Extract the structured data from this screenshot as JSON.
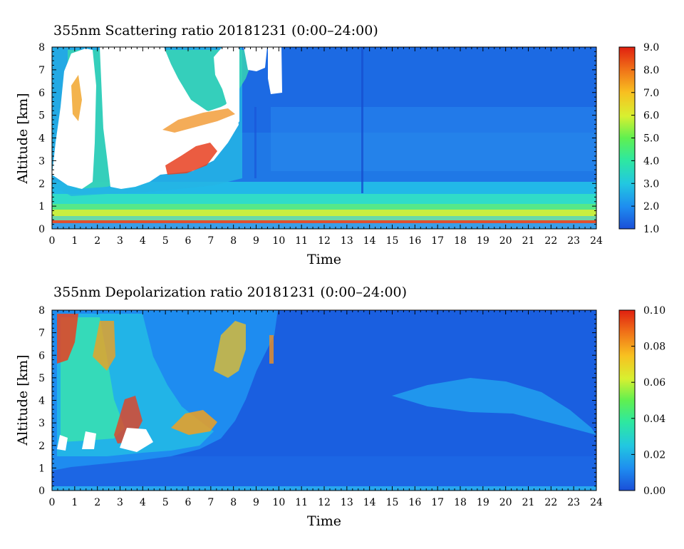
{
  "chart_data": [
    {
      "type": "heatmap",
      "title": "355nm Scattering ratio  20181231 (0:00–24:00)",
      "xlabel": "Time",
      "ylabel": "Altitude [km]",
      "xlim": [
        0,
        24
      ],
      "ylim": [
        0,
        8
      ],
      "x_ticks": [
        "0",
        "1",
        "2",
        "3",
        "4",
        "5",
        "6",
        "7",
        "8",
        "9",
        "10",
        "11",
        "12",
        "13",
        "14",
        "15",
        "16",
        "17",
        "18",
        "19",
        "20",
        "21",
        "22",
        "23",
        "24"
      ],
      "y_ticks": [
        "0",
        "1",
        "2",
        "3",
        "4",
        "5",
        "6",
        "7",
        "8"
      ],
      "colorbar": {
        "min": 1.0,
        "max": 9.0,
        "ticks": [
          "1.0",
          "2.0",
          "3.0",
          "4.0",
          "5.0",
          "6.0",
          "7.0",
          "8.0",
          "9.0"
        ]
      },
      "saturated_color": "#ffffff",
      "colormap": [
        "#1a4fd8",
        "#1e8cf0",
        "#22c8e0",
        "#2ee8a0",
        "#60f050",
        "#d8f030",
        "#f8c020",
        "#f07018",
        "#e02010"
      ]
    },
    {
      "type": "heatmap",
      "title": "355nm Depolarization ratio  20181231 (0:00–24:00)",
      "xlabel": "Time",
      "ylabel": "Altitude [km]",
      "xlim": [
        0,
        24
      ],
      "ylim": [
        0,
        8
      ],
      "x_ticks": [
        "0",
        "1",
        "2",
        "3",
        "4",
        "5",
        "6",
        "7",
        "8",
        "9",
        "10",
        "11",
        "12",
        "13",
        "14",
        "15",
        "16",
        "17",
        "18",
        "19",
        "20",
        "21",
        "22",
        "23",
        "24"
      ],
      "y_ticks": [
        "0",
        "1",
        "2",
        "3",
        "4",
        "5",
        "6",
        "7",
        "8"
      ],
      "colorbar": {
        "min": 0.0,
        "max": 0.1,
        "ticks": [
          "0.00",
          "0.02",
          "0.04",
          "0.06",
          "0.08",
          "0.10"
        ]
      },
      "saturated_color": "#ffffff",
      "colormap": [
        "#1a4fd8",
        "#1e8cf0",
        "#22c8e0",
        "#2ee8a0",
        "#60f050",
        "#d8f030",
        "#f8c020",
        "#f07018",
        "#e02010"
      ]
    }
  ]
}
